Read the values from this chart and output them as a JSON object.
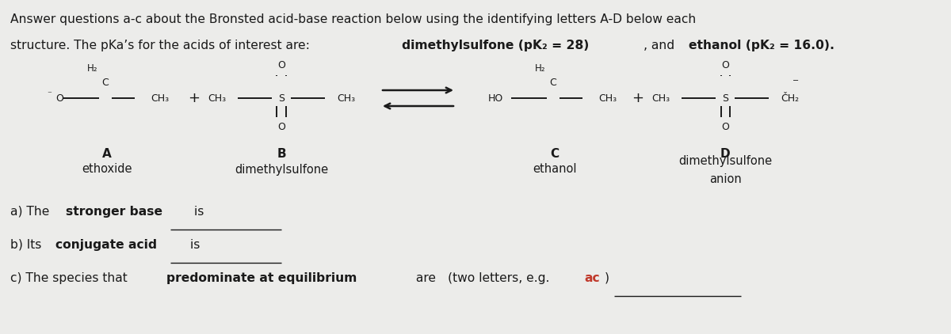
{
  "background_color": "#ececea",
  "text_color": "#1a1a1a",
  "title_line1": "Answer questions a-c about the Bronsted acid-base reaction below using the identifying letters A-D below each",
  "title_line2_plain1": "structure. The pKa’s for the acids of interest are: ",
  "title_line2_bold1": "dimethylsulfone (pK₂ = 28)",
  "title_line2_plain2": ", and ",
  "title_line2_bold2": "ethanol (pK₂ = 16.0).",
  "font_size_title": 11.2,
  "font_size_struct": 9.0,
  "font_size_label": 11.0,
  "font_size_body": 11.2,
  "font_size_plus": 13.0,
  "label_A": "A",
  "label_B": "B",
  "label_C": "C",
  "label_D": "D",
  "name_A": "ethoxide",
  "name_B": "dimethylsulfone",
  "name_C": "ethanol",
  "name_D1": "dimethylsulfone",
  "name_D2": "anion",
  "q_a_pre": "a) The ",
  "q_a_bold": "stronger base",
  "q_a_post": " is",
  "q_b_pre": "b) Its ",
  "q_b_bold": "conjugate acid",
  "q_b_post": " is",
  "q_c_pre": "c) The species that ",
  "q_c_bold": "predominate at equilibrium",
  "q_c_mid": " are ",
  "q_c_paren1": "(two letters, e.g. ",
  "q_c_ac": "ac",
  "q_c_paren2": ")",
  "red_color": "#c0392b"
}
